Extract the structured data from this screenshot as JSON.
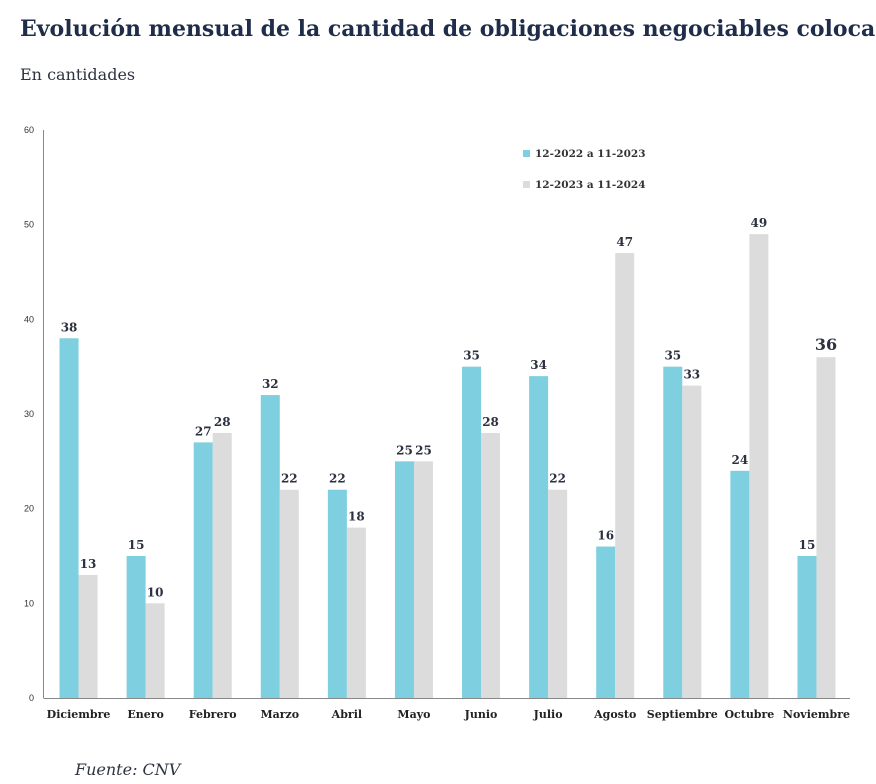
{
  "header": {
    "title": "Evolución mensual de la cantidad de obligaciones negociables colocadas",
    "subtitle": "En cantidades"
  },
  "footer": {
    "source": "Fuente: CNV"
  },
  "colors": {
    "series1": "#7ecfe0",
    "series2": "#dcdcdc",
    "axis": "#888888"
  },
  "chart_data": {
    "type": "bar",
    "title": "Evolución mensual de la cantidad de obligaciones negociables colocadas",
    "subtitle": "En cantidades",
    "xlabel": "",
    "ylabel": "",
    "ylim": [
      0,
      60
    ],
    "yticks": [
      0,
      10,
      20,
      30,
      40,
      50,
      60
    ],
    "grid": false,
    "legend_position": "top-right",
    "categories": [
      "Diciembre",
      "Enero",
      "Febrero",
      "Marzo",
      "Abril",
      "Mayo",
      "Junio",
      "Julio",
      "Agosto",
      "Septiembre",
      "Octubre",
      "Noviembre"
    ],
    "series": [
      {
        "name": "12-2022 a 11-2023",
        "color": "#7ecfe0",
        "values": [
          38,
          15,
          27,
          32,
          22,
          25,
          35,
          34,
          16,
          35,
          24,
          15
        ]
      },
      {
        "name": "12-2023 a 11-2024",
        "color": "#dcdcdc",
        "values": [
          13,
          10,
          28,
          22,
          18,
          25,
          28,
          22,
          47,
          33,
          49,
          36
        ]
      }
    ]
  }
}
